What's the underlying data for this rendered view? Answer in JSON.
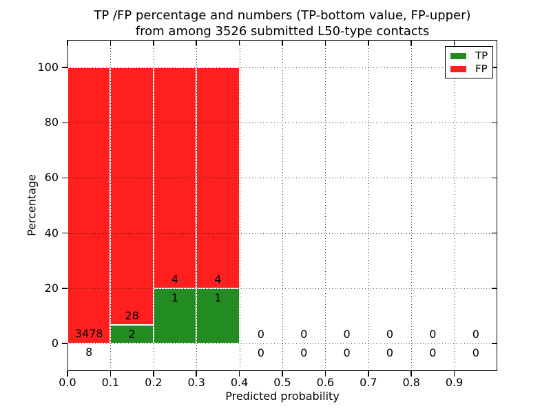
{
  "chart_data": {
    "type": "bar",
    "stacked": true,
    "title_line1": "TP /FP percentage and numbers (TP-bottom value, FP-upper)",
    "title_line2": "from among 3526 submitted L50-type contacts",
    "xlabel": "Predicted probability",
    "ylabel": "Percentage",
    "total_submitted": 3526,
    "bin_width": 0.1,
    "bin_starts": [
      0.0,
      0.1,
      0.2,
      0.3,
      0.4,
      0.5,
      0.6,
      0.7,
      0.8,
      0.9
    ],
    "series": [
      {
        "name": "TP",
        "color": "#228b22",
        "counts": [
          8,
          2,
          1,
          1,
          0,
          0,
          0,
          0,
          0,
          0
        ]
      },
      {
        "name": "FP",
        "color": "#ff1f1f",
        "counts": [
          3478,
          28,
          4,
          4,
          0,
          0,
          0,
          0,
          0,
          0
        ]
      }
    ],
    "tp_percent_of_bin": [
      0.23,
      6.67,
      20.0,
      20.0,
      0,
      0,
      0,
      0,
      0,
      0
    ],
    "xtick_labels": [
      "0.0",
      "0.1",
      "0.2",
      "0.3",
      "0.4",
      "0.5",
      "0.6",
      "0.7",
      "0.8",
      "0.9"
    ],
    "ytick_values": [
      0,
      20,
      40,
      60,
      80,
      100
    ],
    "xlim": [
      0.0,
      1.0
    ],
    "ylim": [
      -10,
      110
    ],
    "grid": "dotted",
    "legend": {
      "position": "upper right",
      "entries": [
        {
          "label": "TP",
          "color": "#228b22"
        },
        {
          "label": "FP",
          "color": "#ff1f1f"
        }
      ]
    }
  }
}
